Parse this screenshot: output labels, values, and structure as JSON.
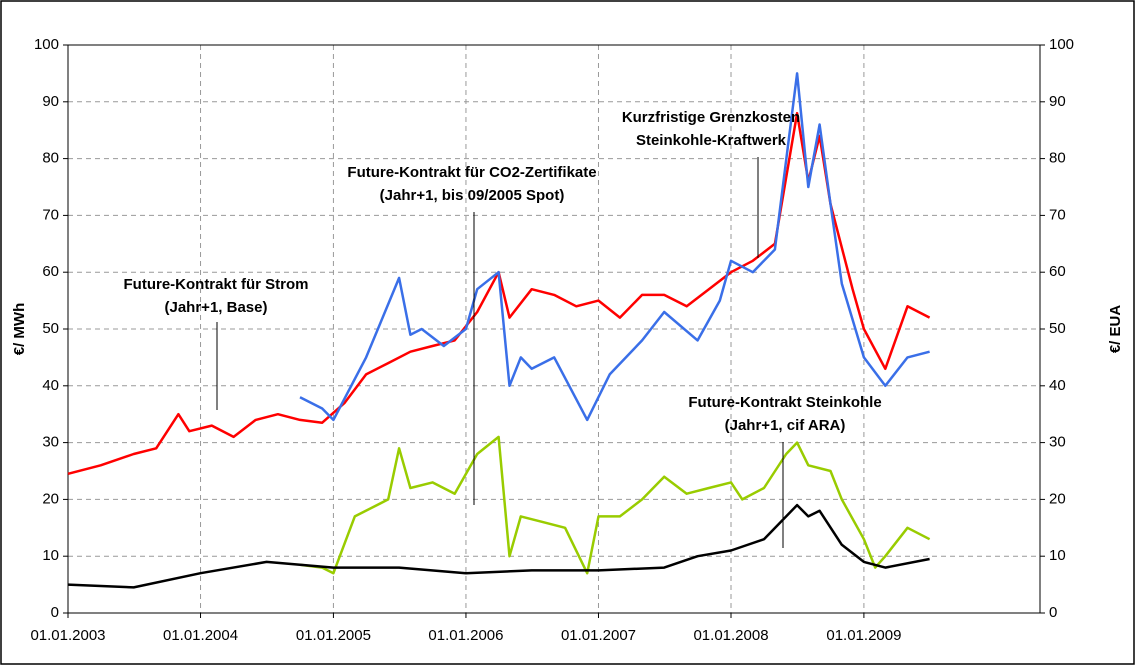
{
  "chart_data": {
    "type": "line",
    "y_label": "€/ MWh",
    "y2_label": "€/ EUA",
    "xlim": [
      "01.01.2003",
      "01.05.2010"
    ],
    "xticks": [
      "01.01.2003",
      "01.01.2004",
      "01.01.2005",
      "01.01.2006",
      "01.01.2007",
      "01.01.2008",
      "01.01.2009"
    ],
    "ylim": [
      0,
      100
    ],
    "yticks": [
      0,
      10,
      20,
      30,
      40,
      50,
      60,
      70,
      80,
      90,
      100
    ],
    "y2lim": [
      0,
      100
    ],
    "y2ticks": [
      0,
      10,
      20,
      30,
      40,
      50,
      60,
      70,
      80,
      90,
      100
    ],
    "grid": true,
    "series": [
      {
        "color": "#ff0000",
        "x": [
          "01.01.2003",
          "01.04.2003",
          "01.07.2003",
          "01.09.2003",
          "01.11.2003",
          "01.12.2003",
          "01.02.2004",
          "01.04.2004",
          "01.06.2004",
          "01.08.2004",
          "01.10.2004",
          "01.12.2004",
          "01.02.2005",
          "01.04.2005",
          "01.06.2005",
          "01.08.2005",
          "01.10.2005",
          "01.12.2005",
          "01.02.2006",
          "01.04.2006",
          "01.05.2006",
          "01.07.2006",
          "01.09.2006",
          "01.11.2006",
          "01.01.2007",
          "01.03.2007",
          "01.05.2007",
          "01.07.2007",
          "01.09.2007",
          "01.11.2007",
          "01.01.2008",
          "01.03.2008",
          "01.05.2008",
          "01.07.2008",
          "01.08.2008",
          "01.09.2008",
          "01.10.2008",
          "01.12.2008",
          "01.01.2009",
          "01.03.2009",
          "01.05.2009",
          "01.07.2009"
        ],
        "values": [
          24.5,
          26,
          28,
          29,
          35,
          32,
          33,
          31,
          34,
          35,
          34,
          33.5,
          37,
          42,
          44,
          46,
          47,
          48,
          53,
          60,
          52,
          57,
          56,
          54,
          55,
          52,
          56,
          56,
          54,
          57,
          60,
          62,
          65,
          88,
          76,
          84,
          72,
          57,
          50,
          43,
          54,
          52
        ]
      },
      {
        "color": "#3a6fe8",
        "x": [
          "01.10.2004",
          "01.12.2004",
          "01.01.2005",
          "01.04.2005",
          "01.07.2005",
          "01.08.2005",
          "01.09.2005",
          "01.11.2005",
          "01.01.2006",
          "01.02.2006",
          "01.04.2006",
          "01.05.2006",
          "01.06.2006",
          "01.07.2006",
          "01.09.2006",
          "01.12.2006",
          "01.02.2007",
          "01.05.2007",
          "01.07.2007",
          "01.10.2007",
          "01.12.2007",
          "01.01.2008",
          "01.03.2008",
          "01.05.2008",
          "01.07.2008",
          "01.08.2008",
          "01.09.2008",
          "01.10.2008",
          "01.11.2008",
          "01.01.2009",
          "01.03.2009",
          "01.05.2009",
          "01.07.2009"
        ],
        "values": [
          38,
          36,
          34,
          45,
          59,
          49,
          50,
          47,
          50,
          57,
          60,
          40,
          45,
          43,
          45,
          34,
          42,
          48,
          53,
          48,
          55,
          62,
          60,
          64,
          95,
          75,
          86,
          72,
          58,
          45,
          40,
          45,
          46
        ]
      },
      {
        "color": "#99cc00",
        "axis": "y2",
        "x": [
          "01.10.2004",
          "01.12.2004",
          "01.01.2005",
          "01.03.2005",
          "01.06.2005",
          "01.07.2005",
          "01.08.2005",
          "01.10.2005",
          "01.12.2005",
          "01.02.2006",
          "01.04.2006",
          "01.05.2006",
          "01.06.2006",
          "01.08.2006",
          "01.10.2006",
          "01.12.2006",
          "01.01.2007",
          "01.03.2007",
          "01.05.2007",
          "01.07.2007",
          "01.09.2007",
          "01.11.2007",
          "01.01.2008",
          "01.02.2008",
          "01.04.2008",
          "01.06.2008",
          "01.07.2008",
          "01.08.2008",
          "01.10.2008",
          "01.11.2008",
          "01.01.2009",
          "01.02.2009",
          "01.03.2009",
          "01.05.2009",
          "01.07.2009"
        ],
        "values": [
          8.5,
          8,
          7,
          17,
          20,
          29,
          22,
          23,
          21,
          28,
          31,
          10,
          17,
          16,
          15,
          7,
          17,
          17,
          20,
          24,
          21,
          22,
          23,
          20,
          22,
          28,
          30,
          26,
          25,
          20,
          13,
          8,
          10,
          15,
          13
        ]
      },
      {
        "color": "#000000",
        "x": [
          "01.01.2003",
          "01.07.2003",
          "01.01.2004",
          "01.07.2004",
          "01.01.2005",
          "01.07.2005",
          "01.01.2006",
          "01.07.2006",
          "01.01.2007",
          "01.07.2007",
          "01.10.2007",
          "01.01.2008",
          "01.04.2008",
          "01.07.2008",
          "01.08.2008",
          "01.09.2008",
          "01.11.2008",
          "01.01.2009",
          "01.03.2009",
          "01.07.2009"
        ],
        "values": [
          5,
          4.5,
          7,
          9,
          8,
          8,
          7,
          7.5,
          7.5,
          8,
          10,
          11,
          13,
          19,
          17,
          18,
          12,
          9,
          8,
          9.5
        ]
      }
    ],
    "annotations": [
      {
        "lines": [
          "Future-Kontrakt für Strom",
          "(Jahr+1, Base)"
        ]
      },
      {
        "lines": [
          "Future-Kontrakt für CO2-Zertifikate",
          "(Jahr+1, bis 09/2005 Spot)"
        ]
      },
      {
        "lines": [
          "Kurzfristige Grenzkosten",
          "Steinkohle-Kraftwerk"
        ]
      },
      {
        "lines": [
          "Future-Kontrakt Steinkohle",
          "(Jahr+1, cif ARA)"
        ]
      }
    ]
  }
}
